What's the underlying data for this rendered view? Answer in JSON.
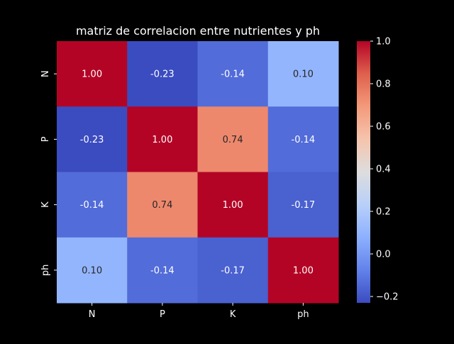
{
  "chart_data": {
    "type": "heatmap",
    "title": "matriz de correlacion entre nutrientes y ph",
    "x_labels": [
      "N",
      "P",
      "K",
      "ph"
    ],
    "y_labels": [
      "N",
      "P",
      "K",
      "ph"
    ],
    "values": [
      [
        1.0,
        -0.23,
        -0.14,
        0.1
      ],
      [
        -0.23,
        1.0,
        0.74,
        -0.14
      ],
      [
        -0.14,
        0.74,
        1.0,
        -0.17
      ],
      [
        0.1,
        -0.14,
        -0.17,
        1.0
      ]
    ],
    "value_labels": [
      [
        "1.00",
        "-0.23",
        "-0.14",
        "0.10"
      ],
      [
        "-0.23",
        "1.00",
        "0.74",
        "-0.14"
      ],
      [
        "-0.14",
        "0.74",
        "1.00",
        "-0.17"
      ],
      [
        "0.10",
        "-0.14",
        "-0.17",
        "1.00"
      ]
    ],
    "colorbar": {
      "range": [
        -0.23,
        1.0
      ],
      "ticks": [
        -0.2,
        0.0,
        0.2,
        0.4,
        0.6,
        0.8,
        1.0
      ],
      "tick_labels": [
        "−0.2",
        "0.0",
        "0.2",
        "0.4",
        "0.6",
        "0.8",
        "1.0"
      ],
      "colormap": "coolwarm"
    },
    "background": "#000000",
    "text_color": "#ffffff"
  }
}
